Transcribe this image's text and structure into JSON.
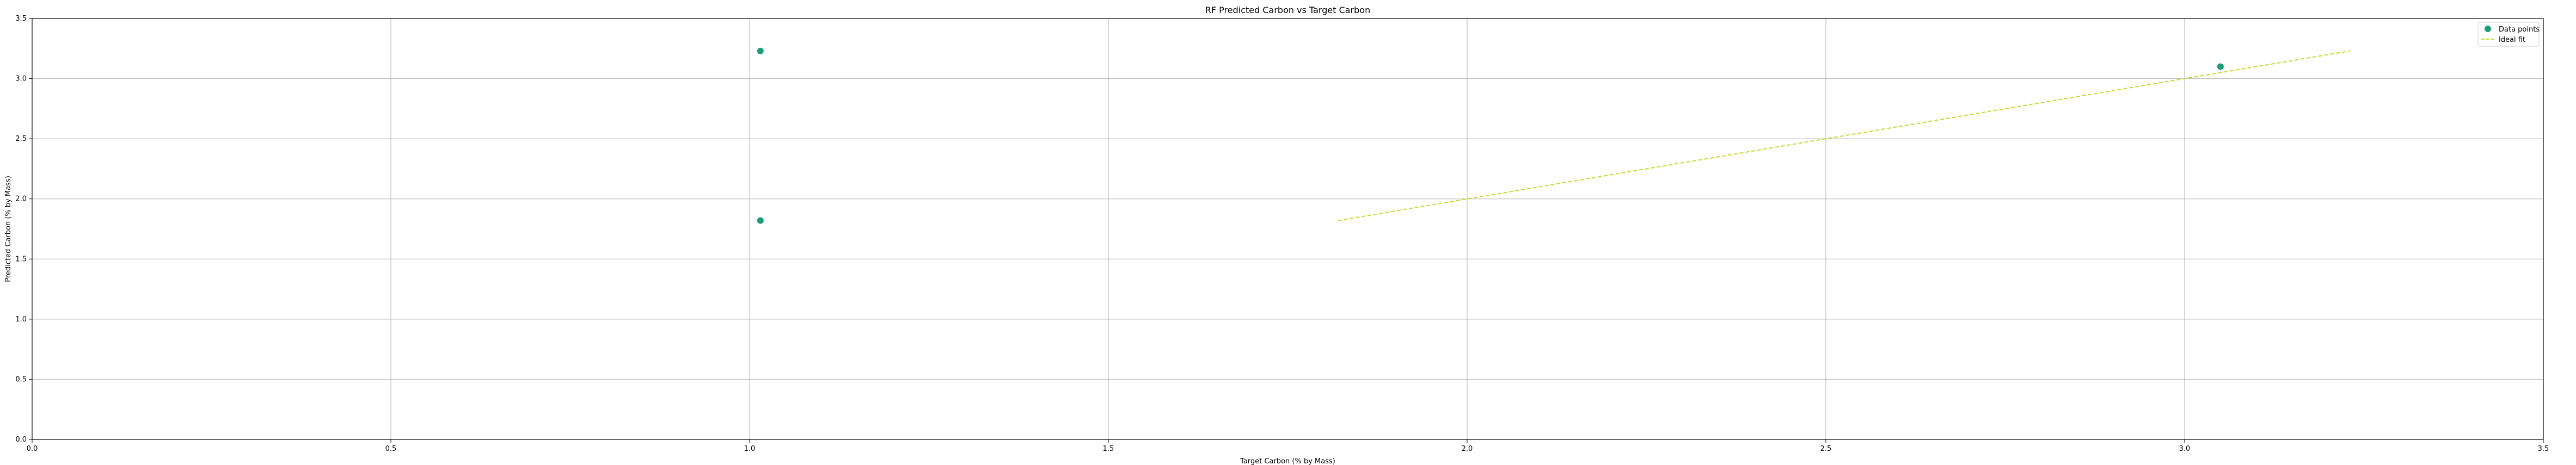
{
  "chart_data": {
    "type": "scatter",
    "title": "RF Predicted Carbon vs Target Carbon",
    "xlabel": "Target Carbon (% by Mass)",
    "ylabel": "Predicted Carbon (% by Mass)",
    "xlim": [
      0,
      3.5
    ],
    "ylim": [
      0,
      3.5
    ],
    "xticks": [
      0,
      0.5,
      1.0,
      1.5,
      2.0,
      2.5,
      3.0,
      3.5
    ],
    "xtick_labels": [
      "0.0",
      "0.5",
      "1.0",
      "1.5",
      "2.0",
      "2.5",
      "3.0",
      "3.5"
    ],
    "yticks": [
      0,
      0.5,
      1.0,
      1.5,
      2.0,
      2.5,
      3.0,
      3.5
    ],
    "ytick_labels": [
      "0.0",
      "0.5",
      "1.0",
      "1.5",
      "2.0",
      "2.5",
      "3.0",
      "3.5"
    ],
    "grid": true,
    "legend_position": "top-right",
    "series": [
      {
        "name": "Data points",
        "kind": "scatter",
        "color": "#1a9e77",
        "points": [
          {
            "x": 1.015,
            "y": 3.23
          },
          {
            "x": 1.015,
            "y": 1.82
          },
          {
            "x": 3.05,
            "y": 3.1
          }
        ]
      },
      {
        "name": "Ideal fit",
        "kind": "line",
        "style": "dashed",
        "color": "#c5d92b",
        "points": [
          {
            "x": 1.82,
            "y": 1.82
          },
          {
            "x": 3.23,
            "y": 3.23
          }
        ]
      }
    ]
  }
}
